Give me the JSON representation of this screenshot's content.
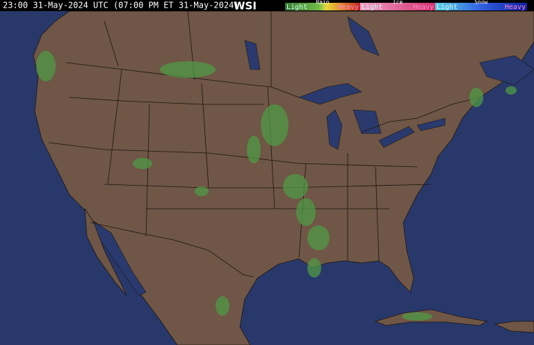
{
  "header": {
    "timestamp": "23:00 31-May-2024 UTC (07:00 PM ET 31-May-2024)",
    "logo": "WSI"
  },
  "legend": [
    {
      "type": "Rain",
      "low": "Light",
      "high": "Heavy"
    },
    {
      "type": "Ice",
      "low": "Light",
      "high": "Heavy"
    },
    {
      "type": "Snow",
      "low": "Light",
      "high": "Heavy"
    }
  ]
}
